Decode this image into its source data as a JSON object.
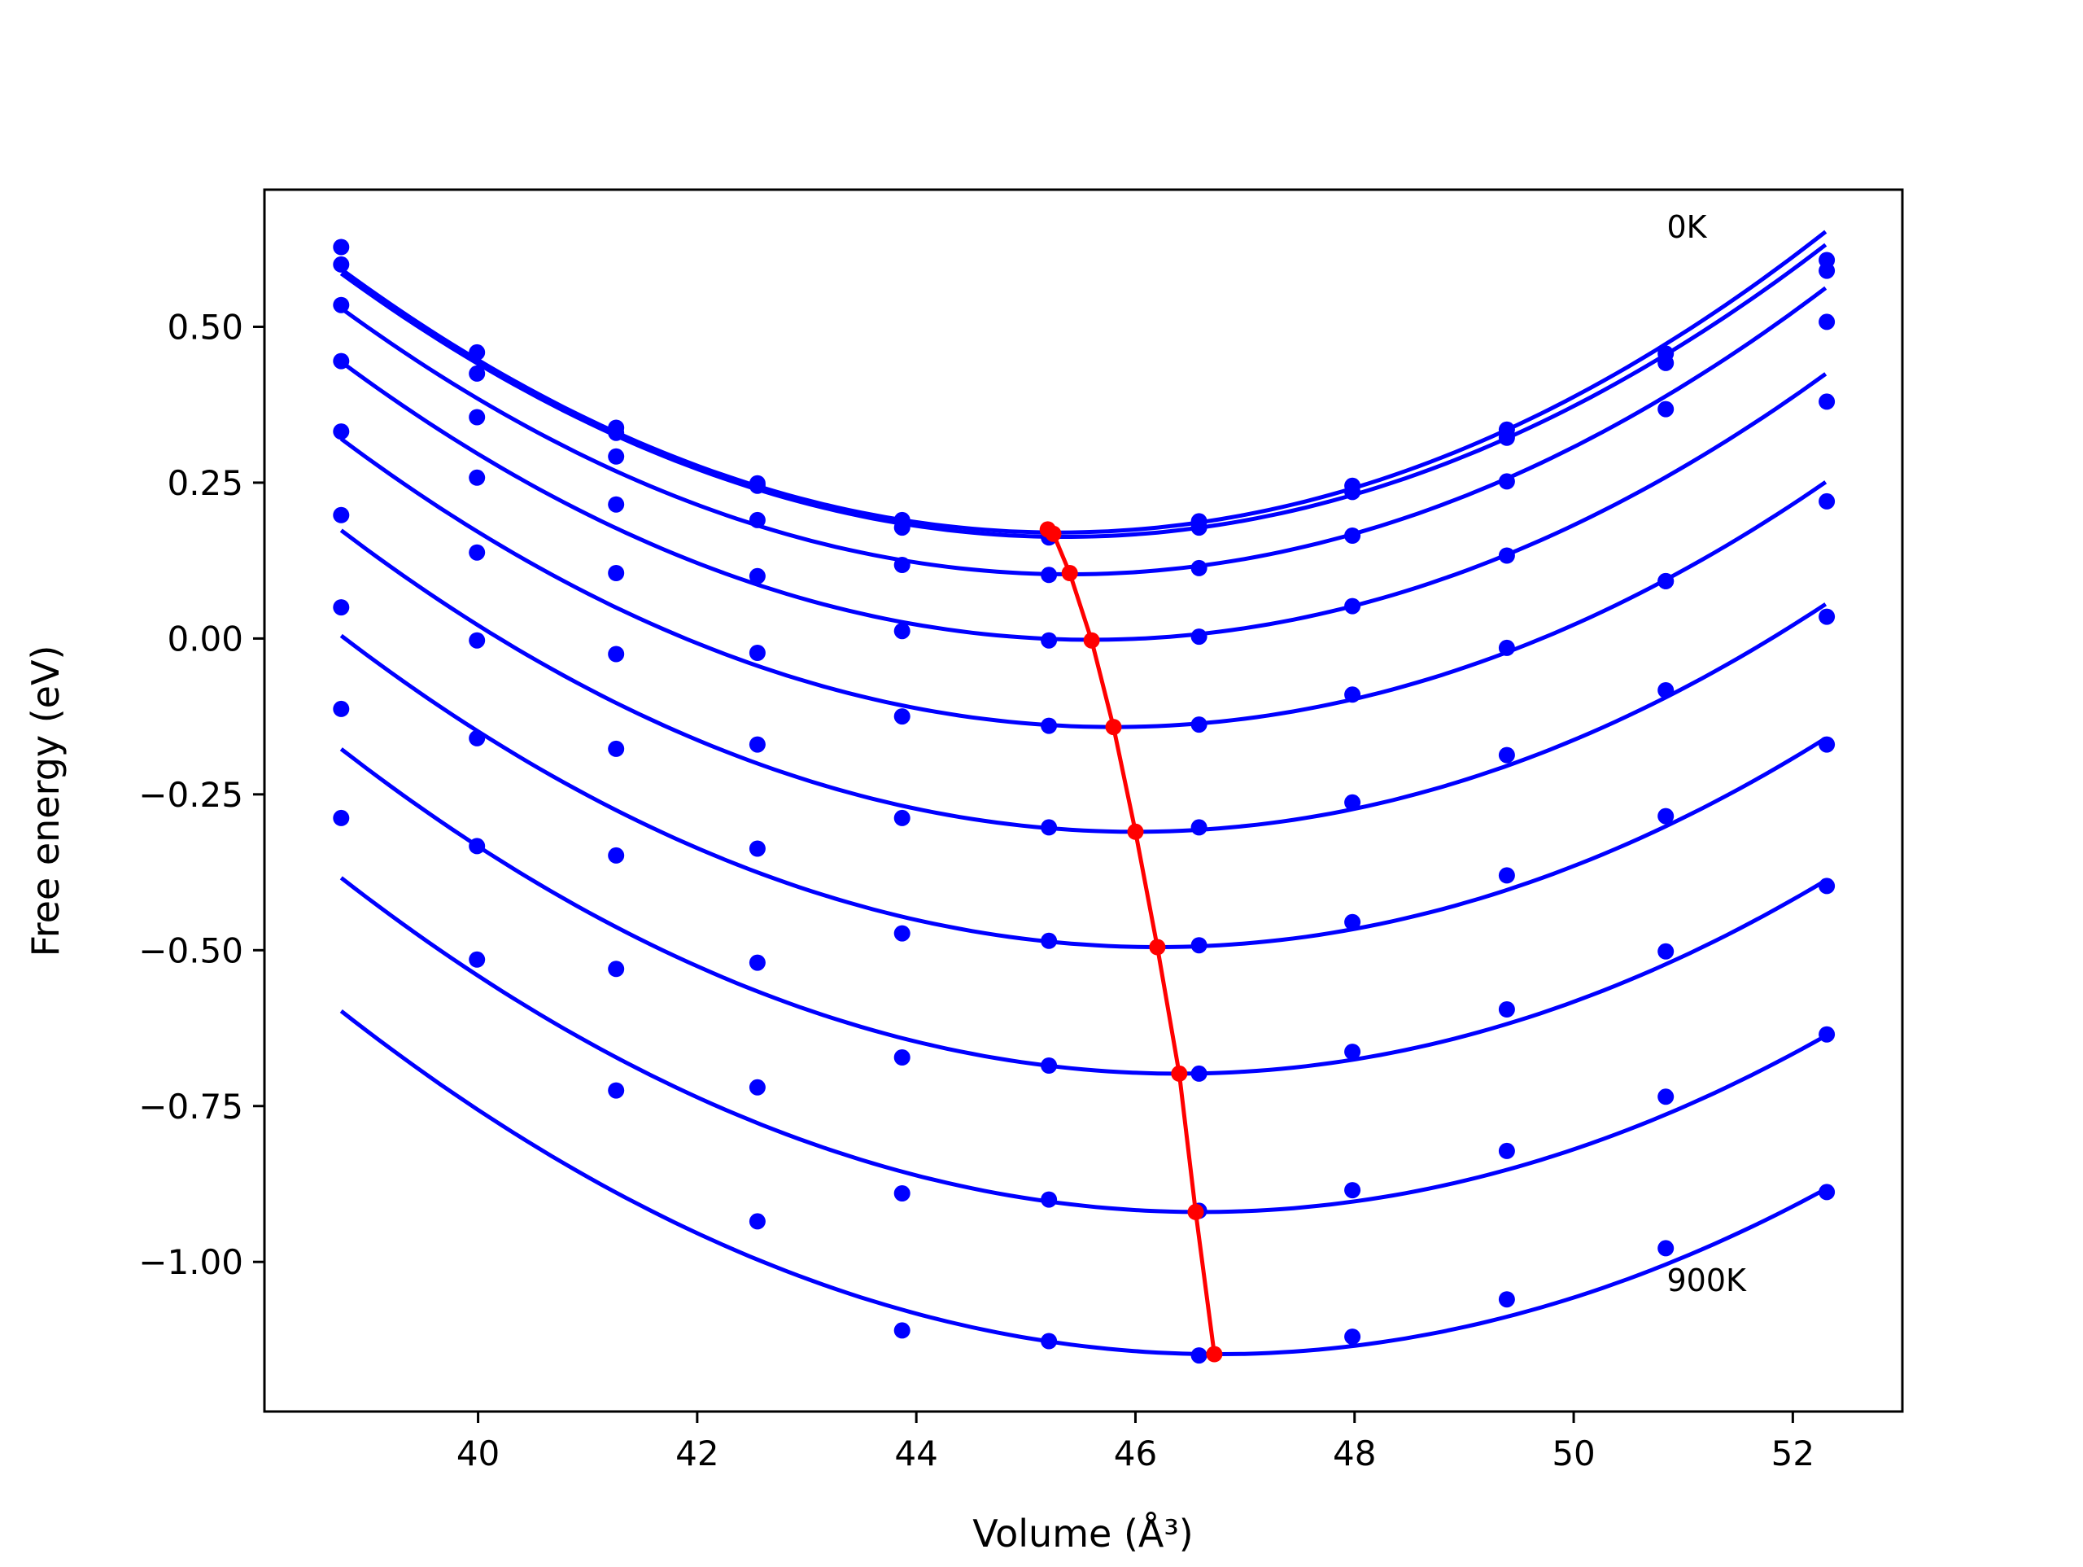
{
  "chart_data": {
    "type": "line",
    "title": "",
    "xlabel": "Volume (Å³)",
    "ylabel": "Free energy (eV)",
    "xlim": [
      38.05,
      53.0
    ],
    "ylim": [
      -1.24,
      0.72
    ],
    "xticks": [
      {
        "value": 40,
        "label": "40"
      },
      {
        "value": 42,
        "label": "42"
      },
      {
        "value": 44,
        "label": "44"
      },
      {
        "value": 46,
        "label": "46"
      },
      {
        "value": 48,
        "label": "48"
      },
      {
        "value": 50,
        "label": "50"
      },
      {
        "value": 52,
        "label": "52"
      }
    ],
    "yticks": [
      {
        "value": 0.5,
        "label": "0.50"
      },
      {
        "value": 0.25,
        "label": "0.25"
      },
      {
        "value": 0.0,
        "label": "0.00"
      },
      {
        "value": -0.25,
        "label": "−0.25"
      },
      {
        "value": -0.5,
        "label": "−0.50"
      },
      {
        "value": -0.75,
        "label": "−0.75"
      },
      {
        "value": -1.0,
        "label": "−1.00"
      }
    ],
    "grid": false,
    "legend": "none",
    "colors": {
      "fit_curves": "#0000ff",
      "data_points": "#0000ff",
      "minima_line": "#ff0000"
    },
    "x_data": [
      38.75,
      39.99,
      41.26,
      42.55,
      43.87,
      45.21,
      46.58,
      47.98,
      49.39,
      50.84,
      52.31
    ],
    "series": [
      {
        "points": [
          0.628,
          0.459,
          0.338,
          0.249,
          0.19,
          0.168,
          0.188,
          0.245,
          0.335,
          0.457,
          0.607
        ],
        "fit": {
          "a": 0.00985,
          "v0": 45.3,
          "emin": 0.17,
          "xrange": [
            38.75,
            52.3
          ]
        }
      },
      {
        "points": [
          0.6,
          0.425,
          0.33,
          0.245,
          0.178,
          0.162,
          0.178,
          0.235,
          0.322,
          0.442,
          0.59
        ],
        "fit": {
          "a": 0.0097,
          "v0": 45.35,
          "emin": 0.163,
          "xrange": [
            38.75,
            52.3
          ]
        }
      },
      {
        "points": [
          0.535,
          0.355,
          0.292,
          0.19,
          0.118,
          0.102,
          0.113,
          0.165,
          0.252,
          0.368,
          0.508
        ],
        "fit": {
          "a": 0.00965,
          "v0": 45.4,
          "emin": 0.103,
          "xrange": [
            38.75,
            52.3
          ]
        }
      },
      {
        "points": [
          0.445,
          0.258,
          0.215,
          0.1,
          0.012,
          -0.003,
          0.003,
          0.052,
          0.133,
          0.092,
          0.38
        ],
        "fit": {
          "a": 0.0095,
          "v0": 45.6,
          "emin": -0.002,
          "xrange": [
            38.75,
            52.3
          ]
        }
      },
      {
        "points": [
          0.332,
          0.138,
          0.105,
          -0.023,
          -0.125,
          -0.14,
          -0.138,
          -0.09,
          -0.015,
          0.092,
          0.22
        ],
        "fit": {
          "a": 0.0093,
          "v0": 45.8,
          "emin": -0.142,
          "xrange": [
            38.75,
            52.3
          ]
        }
      },
      {
        "points": [
          0.198,
          -0.003,
          -0.025,
          -0.17,
          -0.288,
          -0.303,
          -0.303,
          -0.263,
          -0.187,
          -0.083,
          0.035
        ],
        "fit": {
          "a": 0.0092,
          "v0": 46.0,
          "emin": -0.31,
          "xrange": [
            38.75,
            52.3
          ]
        }
      },
      {
        "points": [
          0.05,
          -0.16,
          -0.177,
          -0.337,
          -0.473,
          -0.485,
          -0.492,
          -0.455,
          -0.38,
          -0.285,
          -0.17
        ],
        "fit": {
          "a": 0.009,
          "v0": 46.2,
          "emin": -0.495,
          "xrange": [
            38.75,
            52.3
          ]
        }
      },
      {
        "points": [
          -0.113,
          -0.333,
          -0.348,
          -0.52,
          -0.672,
          -0.685,
          -0.698,
          -0.663,
          -0.595,
          -0.502,
          -0.397
        ],
        "fit": {
          "a": 0.0089,
          "v0": 46.4,
          "emin": -0.698,
          "xrange": [
            38.75,
            52.3
          ]
        }
      },
      {
        "points": [
          -0.288,
          -0.515,
          -0.53,
          -0.72,
          -0.89,
          -0.9,
          -0.918,
          -0.885,
          -0.822,
          -0.735,
          -0.635
        ],
        "fit": {
          "a": 0.0087,
          "v0": 46.6,
          "emin": -0.92,
          "xrange": [
            38.75,
            52.3
          ]
        }
      },
      {
        "points": [
          null,
          null,
          -0.725,
          -0.935,
          -1.11,
          -1.127,
          -1.15,
          -1.12,
          -1.06,
          -0.978,
          -0.888
        ],
        "fit": {
          "a": 0.0086,
          "v0": 46.75,
          "emin": -1.148,
          "xrange": [
            38.75,
            52.3
          ]
        }
      }
    ],
    "minima": {
      "x": [
        45.2,
        45.25,
        45.4,
        45.6,
        45.8,
        46.0,
        46.2,
        46.4,
        46.55,
        46.72
      ],
      "y": [
        0.175,
        0.168,
        0.105,
        -0.003,
        -0.142,
        -0.31,
        -0.495,
        -0.698,
        -0.92,
        -1.148
      ]
    },
    "annotations": [
      {
        "text": "0K",
        "x": 50.85,
        "y": 0.66
      },
      {
        "text": "900K",
        "x": 50.85,
        "y": -1.03
      }
    ]
  }
}
